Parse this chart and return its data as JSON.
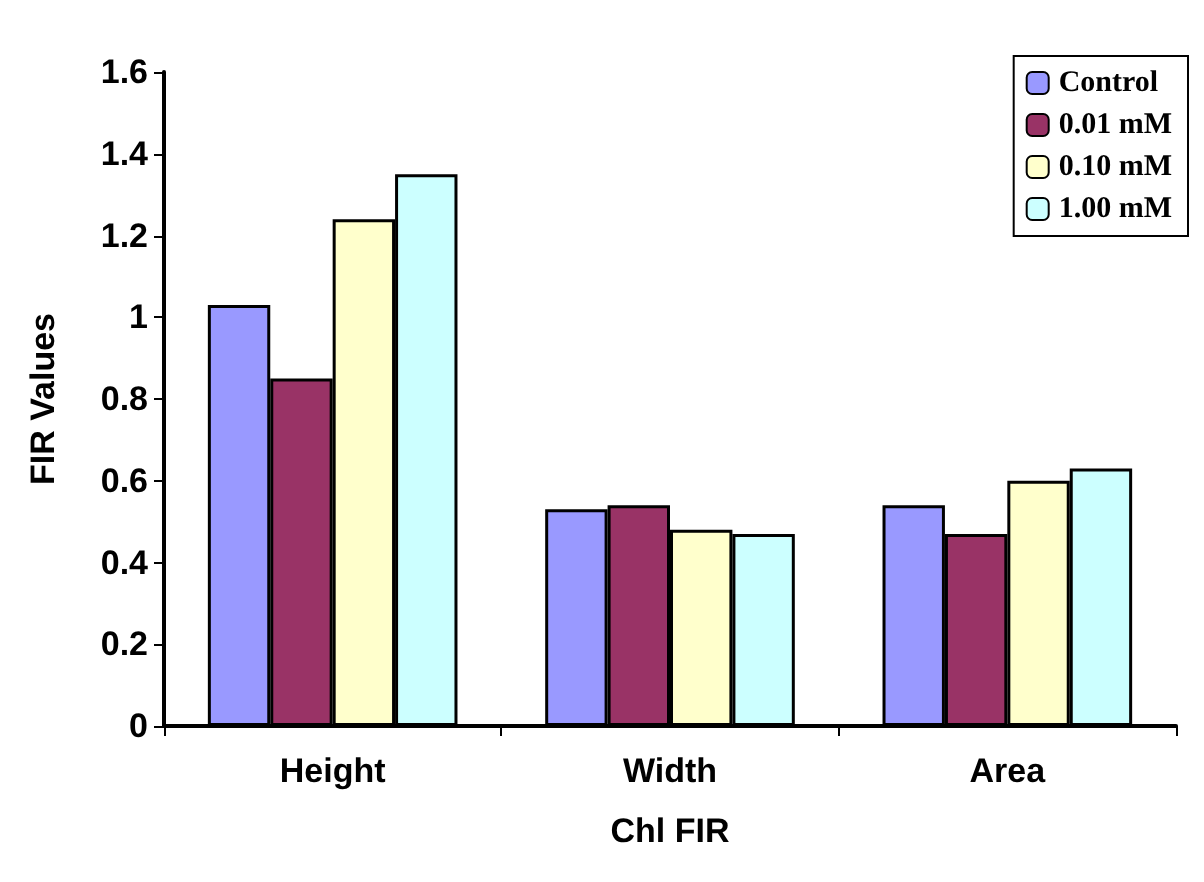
{
  "chart_data": {
    "type": "bar",
    "xlabel": "Chl FIR",
    "ylabel": "FIR Values",
    "categories": [
      "Height",
      "Width",
      "Area"
    ],
    "series": [
      {
        "name": "Control",
        "color": "#9999ff",
        "values": [
          1.03,
          0.53,
          0.54
        ]
      },
      {
        "name": "0.01 mM",
        "color": "#993366",
        "values": [
          0.85,
          0.54,
          0.47
        ]
      },
      {
        "name": "0.10 mM",
        "color": "#ffffcc",
        "values": [
          1.24,
          0.48,
          0.6
        ]
      },
      {
        "name": "1.00 mM",
        "color": "#ccffff",
        "values": [
          1.35,
          0.47,
          0.63
        ]
      }
    ],
    "ylim": [
      0,
      1.6
    ],
    "yticks": [
      0,
      0.2,
      0.4,
      0.6,
      0.8,
      1,
      1.2,
      1.4,
      1.6
    ],
    "grid": false,
    "legend": "top right"
  }
}
